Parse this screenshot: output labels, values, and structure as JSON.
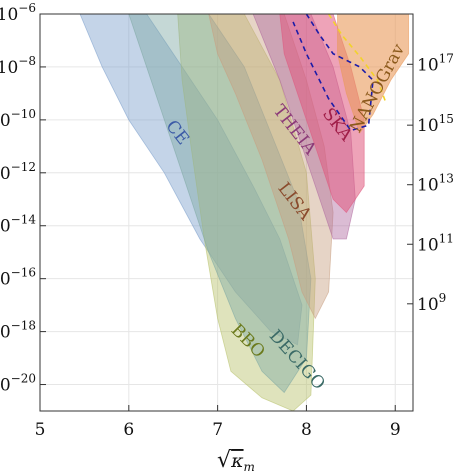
{
  "chart_data": {
    "type": "area",
    "title": "",
    "xlabel": "√κm",
    "xlabel_parts": {
      "radical": "√",
      "symbol": "κ",
      "subscript": "m"
    },
    "ylabel_left": "",
    "ylabel_right": "",
    "x_ticks": [
      "5",
      "6",
      "7",
      "8",
      "9"
    ],
    "y_left_ticks": [
      {
        "value": -6,
        "label": "10",
        "exp": "−6"
      },
      {
        "value": -8,
        "label": "10",
        "exp": "−8"
      },
      {
        "value": -10,
        "label": "10",
        "exp": "−10"
      },
      {
        "value": -12,
        "label": "10",
        "exp": "−12"
      },
      {
        "value": -14,
        "label": "10",
        "exp": "−14"
      },
      {
        "value": -16,
        "label": "10",
        "exp": "−16"
      },
      {
        "value": -18,
        "label": "10",
        "exp": "−18"
      },
      {
        "value": -20,
        "label": "10",
        "exp": "−20"
      }
    ],
    "y_right_ticks": [
      {
        "value": -7.9,
        "label": "10",
        "exp": "17"
      },
      {
        "value": -10.2,
        "label": "10",
        "exp": "15"
      },
      {
        "value": -12.45,
        "label": "10",
        "exp": "13"
      },
      {
        "value": -14.7,
        "label": "10",
        "exp": "11"
      },
      {
        "value": -16.95,
        "label": "10",
        "exp": "9"
      }
    ],
    "xlim": [
      5,
      9.2
    ],
    "ylim_log10": [
      -21,
      -6
    ],
    "grid": true,
    "series": [
      {
        "name": "CE",
        "color": "#7c9fcc",
        "opacity": 0.45,
        "polygon": [
          [
            5.45,
            -6
          ],
          [
            6.2,
            -6
          ],
          [
            6.6,
            -8
          ],
          [
            7.0,
            -10
          ],
          [
            7.4,
            -12.5
          ],
          [
            7.7,
            -14.5
          ],
          [
            7.95,
            -17
          ],
          [
            7.9,
            -18.5
          ],
          [
            7.6,
            -18
          ],
          [
            7.2,
            -16.5
          ],
          [
            6.8,
            -14.5
          ],
          [
            6.4,
            -12
          ],
          [
            6.0,
            -10
          ],
          [
            5.7,
            -8
          ]
        ]
      },
      {
        "name": "BBO",
        "color": "#b8c26a",
        "opacity": 0.45,
        "polygon": [
          [
            6.55,
            -6
          ],
          [
            7.3,
            -6
          ],
          [
            7.7,
            -8.5
          ],
          [
            8.0,
            -12
          ],
          [
            8.1,
            -16
          ],
          [
            8.05,
            -20.4
          ],
          [
            7.85,
            -21
          ],
          [
            7.5,
            -20.5
          ],
          [
            7.15,
            -19.5
          ],
          [
            7.0,
            -17.5
          ],
          [
            6.85,
            -14.5
          ],
          [
            6.7,
            -11
          ],
          [
            6.6,
            -8.5
          ]
        ]
      },
      {
        "name": "DECIGO",
        "color": "#7fa8a4",
        "opacity": 0.45,
        "polygon": [
          [
            6.0,
            -6
          ],
          [
            6.9,
            -6
          ],
          [
            7.3,
            -8
          ],
          [
            7.6,
            -10.5
          ],
          [
            7.9,
            -13
          ],
          [
            8.05,
            -16
          ],
          [
            8.0,
            -19
          ],
          [
            7.75,
            -20.3
          ],
          [
            7.5,
            -19.5
          ],
          [
            7.2,
            -17.5
          ],
          [
            6.9,
            -15
          ],
          [
            6.6,
            -12
          ],
          [
            6.3,
            -9
          ]
        ]
      },
      {
        "name": "LISA",
        "color": "#c89f80",
        "opacity": 0.45,
        "polygon": [
          [
            6.9,
            -6
          ],
          [
            7.75,
            -6
          ],
          [
            8.0,
            -8.5
          ],
          [
            8.2,
            -11
          ],
          [
            8.3,
            -13.5
          ],
          [
            8.25,
            -16.5
          ],
          [
            8.1,
            -17.5
          ],
          [
            7.95,
            -16.5
          ],
          [
            7.8,
            -14.5
          ],
          [
            7.5,
            -11.5
          ],
          [
            7.2,
            -9
          ],
          [
            7.0,
            -7.5
          ]
        ]
      },
      {
        "name": "THEIA",
        "color": "#b06aa0",
        "opacity": 0.45,
        "polygon": [
          [
            7.4,
            -6
          ],
          [
            8.05,
            -6
          ],
          [
            8.3,
            -8
          ],
          [
            8.5,
            -10.5
          ],
          [
            8.55,
            -13
          ],
          [
            8.45,
            -14.5
          ],
          [
            8.3,
            -14.5
          ],
          [
            8.15,
            -13
          ],
          [
            7.95,
            -11
          ],
          [
            7.7,
            -8.5
          ]
        ]
      },
      {
        "name": "SKA",
        "color": "#e0587e",
        "opacity": 0.55,
        "polygon": [
          [
            7.7,
            -6
          ],
          [
            8.3,
            -6
          ],
          [
            8.5,
            -8
          ],
          [
            8.65,
            -10
          ],
          [
            8.65,
            -12.5
          ],
          [
            8.45,
            -13.5
          ],
          [
            8.3,
            -13
          ],
          [
            8.15,
            -11.5
          ],
          [
            7.9,
            -9
          ],
          [
            7.75,
            -7.5
          ]
        ]
      },
      {
        "name": "NANOGrav",
        "color": "#e99a5a",
        "opacity": 0.6,
        "polygon": [
          [
            8.35,
            -6
          ],
          [
            9.15,
            -6
          ],
          [
            9.15,
            -7.5
          ],
          [
            8.95,
            -8.5
          ],
          [
            8.75,
            -9.8
          ],
          [
            8.6,
            -10.5
          ],
          [
            8.45,
            -9
          ],
          [
            8.35,
            -7.5
          ]
        ]
      }
    ],
    "contours": [
      {
        "style": "dashed",
        "color": "#1c1ca8",
        "points": [
          [
            8.0,
            -6
          ],
          [
            8.15,
            -6.8
          ],
          [
            8.3,
            -7.5
          ],
          [
            8.6,
            -8.0
          ],
          [
            8.75,
            -8.5
          ],
          [
            8.7,
            -10.2
          ],
          [
            8.5,
            -10.4
          ],
          [
            8.25,
            -9.2
          ],
          [
            8.0,
            -7.5
          ],
          [
            7.85,
            -6.3
          ]
        ]
      },
      {
        "style": "dashed",
        "color": "#f2d32a",
        "points": [
          [
            8.25,
            -6
          ],
          [
            8.4,
            -6.8
          ],
          [
            8.6,
            -7.6
          ],
          [
            8.8,
            -8.5
          ],
          [
            8.9,
            -9.4
          ]
        ]
      }
    ],
    "annotations": [
      {
        "text": "CE",
        "x": 6.5,
        "y": -10.6,
        "rotate": 52,
        "color": "#3b5aa6"
      },
      {
        "text": "THEIA",
        "x": 7.82,
        "y": -10.5,
        "rotate": 52,
        "color": "#8c3a78"
      },
      {
        "text": "LISA",
        "x": 7.82,
        "y": -13.2,
        "rotate": 52,
        "color": "#8a4a2c"
      },
      {
        "text": "SKA",
        "x": 8.3,
        "y": -10.3,
        "rotate": 52,
        "color": "#a01e48"
      },
      {
        "text": "NANOGrav",
        "x": 8.85,
        "y": -8.9,
        "rotate": -62,
        "color": "#8c5a1c"
      },
      {
        "text": "BBO",
        "x": 7.3,
        "y": -18.5,
        "rotate": 45,
        "color": "#6b7a1c"
      },
      {
        "text": "DECIGO",
        "x": 7.85,
        "y": -19.2,
        "rotate": 48,
        "color": "#3a6a66"
      }
    ]
  }
}
